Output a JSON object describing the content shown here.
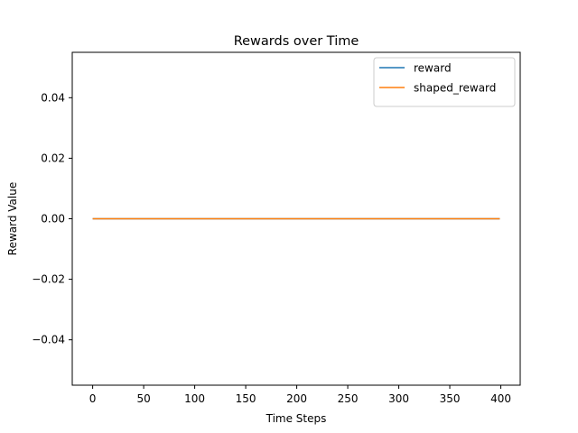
{
  "chart_data": {
    "type": "line",
    "title": "Rewards over Time",
    "xlabel": "Time Steps",
    "ylabel": "Reward Value",
    "xlim": [
      -20,
      419
    ],
    "ylim": [
      -0.055,
      0.055
    ],
    "x_ticks": [
      0,
      50,
      100,
      150,
      200,
      250,
      300,
      350,
      400
    ],
    "x_tick_labels": [
      "0",
      "50",
      "100",
      "150",
      "200",
      "250",
      "300",
      "350",
      "400"
    ],
    "y_ticks": [
      -0.04,
      -0.02,
      0.0,
      0.02,
      0.04
    ],
    "y_tick_labels": [
      "−0.04",
      "−0.02",
      "0.00",
      "0.02",
      "0.04"
    ],
    "grid": false,
    "legend_position": "top-right",
    "series": [
      {
        "name": "reward",
        "color": "#1f77b4",
        "x": [
          0,
          399
        ],
        "y": [
          0.0,
          0.0
        ]
      },
      {
        "name": "shaped_reward",
        "color": "#ff7f0e",
        "x": [
          0,
          399
        ],
        "y": [
          0.0,
          0.0
        ]
      }
    ]
  }
}
